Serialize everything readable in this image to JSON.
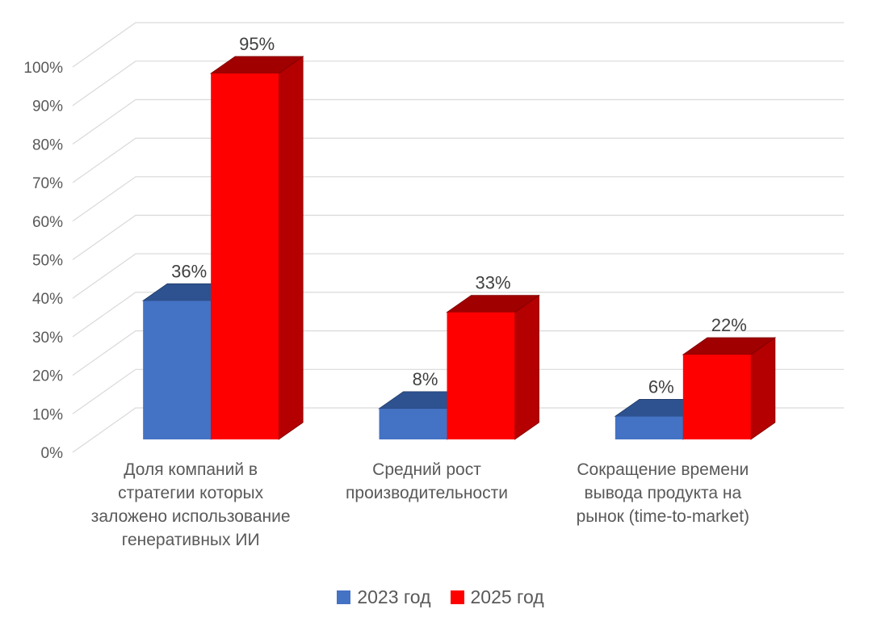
{
  "chart_data": {
    "type": "bar",
    "variant": "3d-clustered-column",
    "title": "",
    "xlabel": "",
    "ylabel": "",
    "grid": true,
    "background_color": "#FFFFFF",
    "categories": [
      {
        "lines": [
          "Доля компаний в",
          "стратегии которых",
          "заложено использование",
          "генеративных ИИ"
        ]
      },
      {
        "lines": [
          "Средний рост",
          "производительности"
        ]
      },
      {
        "lines": [
          "Сокращение времени",
          "вывода продукта на",
          "рынок (time-to-market)"
        ]
      }
    ],
    "series": [
      {
        "name": "2023 год",
        "values": [
          36,
          8,
          6
        ],
        "color": "#4472C4",
        "color_top": "#2E5290",
        "color_side": "#2C4D87",
        "color_edge": "#1F3864"
      },
      {
        "name": "2025 год",
        "values": [
          95,
          33,
          22
        ],
        "color": "#FF0000",
        "color_top": "#A00000",
        "color_side": "#B40000",
        "color_edge": "#7F0000"
      }
    ],
    "data_labels": [
      [
        "36%",
        "8%",
        "6%"
      ],
      [
        "95%",
        "33%",
        "22%"
      ]
    ],
    "y_axis": {
      "min": 0,
      "max": 100,
      "step": 10,
      "ticks": [
        "0%",
        "10%",
        "20%",
        "30%",
        "40%",
        "50%",
        "60%",
        "70%",
        "80%",
        "90%",
        "100%"
      ]
    },
    "legend": {
      "position": "bottom",
      "entries": [
        "2023 год",
        "2025 год"
      ]
    },
    "colors": {
      "gridline": "#D9D9D9",
      "axis_text": "#595959",
      "category_text": "#595959",
      "data_label_text": "#404040",
      "legend_text": "#595959"
    }
  }
}
